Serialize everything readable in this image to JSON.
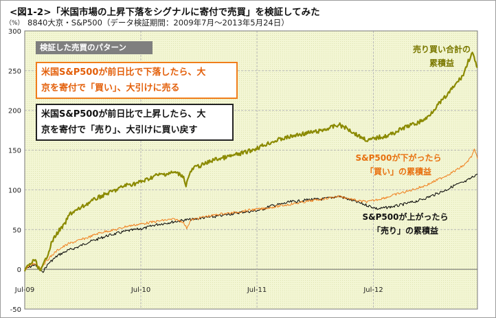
{
  "title": "<図1-2>「米国市場の上昇下落をシグナルに寄付で売買」を検証してみた",
  "subtitle": "8840大京・S&P500（データ検証期間：2009年7月～2013年5月24日）",
  "pattern_label": "検証した売買のパターン",
  "buy_rule_lines": [
    "米国S&P500が前日比で下落したら、大",
    "京を寄付で「買い」、大引けに売る"
  ],
  "sell_rule_lines": [
    "米国S&P500が前日比で上昇したら、大",
    "京を寄付で「売り」、大引けに買い戻す"
  ],
  "annotations": {
    "total": [
      "売り買い合計の",
      "累積益"
    ],
    "buy": [
      "S&P500が下がったら",
      "「買い」の累積益"
    ],
    "sell": [
      "S&P500が上がったら",
      "「売り」の累積益"
    ]
  },
  "colors": {
    "total": "#8b8a00",
    "buy": "#f07d1a",
    "sell": "#000000",
    "plot_bg": "#f3f6d4",
    "grid": "#b8b8b8"
  },
  "chart_data": {
    "type": "line",
    "ylabel": "（%）",
    "ylim": [
      -50,
      300
    ],
    "yticks": [
      -50,
      0,
      50,
      100,
      150,
      200,
      250,
      300
    ],
    "xlim": [
      "2009-07-01",
      "2013-05-24"
    ],
    "xticks": [
      {
        "label": "Jul-09",
        "date": "2009-07-01"
      },
      {
        "label": "Jul-10",
        "date": "2010-07-01"
      },
      {
        "label": "Jul-11",
        "date": "2011-07-01"
      },
      {
        "label": "Jul-12",
        "date": "2012-07-01"
      }
    ],
    "grid": true,
    "series": [
      {
        "key": "total",
        "points": [
          [
            "2009-07-01",
            0
          ],
          [
            "2009-08-01",
            12
          ],
          [
            "2009-08-20",
            -3
          ],
          [
            "2009-09-10",
            18
          ],
          [
            "2009-09-25",
            35
          ],
          [
            "2009-10-15",
            48
          ],
          [
            "2009-11-01",
            55
          ],
          [
            "2009-11-20",
            70
          ],
          [
            "2009-12-15",
            75
          ],
          [
            "2010-01-15",
            83
          ],
          [
            "2010-02-15",
            90
          ],
          [
            "2010-03-15",
            95
          ],
          [
            "2010-04-15",
            100
          ],
          [
            "2010-05-15",
            106
          ],
          [
            "2010-06-15",
            108
          ],
          [
            "2010-07-15",
            112
          ],
          [
            "2010-08-15",
            118
          ],
          [
            "2010-09-15",
            120
          ],
          [
            "2010-10-15",
            122
          ],
          [
            "2010-11-10",
            118
          ],
          [
            "2010-11-20",
            106
          ],
          [
            "2010-12-01",
            120
          ],
          [
            "2010-12-15",
            128
          ],
          [
            "2011-01-15",
            132
          ],
          [
            "2011-02-15",
            138
          ],
          [
            "2011-03-15",
            140
          ],
          [
            "2011-04-15",
            143
          ],
          [
            "2011-05-15",
            146
          ],
          [
            "2011-06-15",
            150
          ],
          [
            "2011-07-15",
            155
          ],
          [
            "2011-08-15",
            160
          ],
          [
            "2011-09-15",
            164
          ],
          [
            "2011-10-15",
            167
          ],
          [
            "2011-11-15",
            170
          ],
          [
            "2011-12-15",
            172
          ],
          [
            "2012-01-15",
            174
          ],
          [
            "2012-02-15",
            178
          ],
          [
            "2012-03-15",
            182
          ],
          [
            "2012-04-15",
            176
          ],
          [
            "2012-05-15",
            168
          ],
          [
            "2012-06-15",
            162
          ],
          [
            "2012-07-15",
            166
          ],
          [
            "2012-08-15",
            168
          ],
          [
            "2012-09-15",
            174
          ],
          [
            "2012-10-15",
            180
          ],
          [
            "2012-11-15",
            184
          ],
          [
            "2012-12-15",
            190
          ],
          [
            "2013-01-15",
            205
          ],
          [
            "2013-02-15",
            218
          ],
          [
            "2013-03-15",
            232
          ],
          [
            "2013-04-10",
            245
          ],
          [
            "2013-04-25",
            262
          ],
          [
            "2013-05-08",
            272
          ],
          [
            "2013-05-16",
            262
          ],
          [
            "2013-05-24",
            254
          ]
        ]
      },
      {
        "key": "buy",
        "points": [
          [
            "2009-07-01",
            0
          ],
          [
            "2009-08-01",
            8
          ],
          [
            "2009-08-20",
            2
          ],
          [
            "2009-09-15",
            14
          ],
          [
            "2009-10-15",
            25
          ],
          [
            "2009-11-15",
            32
          ],
          [
            "2009-12-15",
            36
          ],
          [
            "2010-01-15",
            40
          ],
          [
            "2010-02-15",
            45
          ],
          [
            "2010-03-15",
            48
          ],
          [
            "2010-04-15",
            50
          ],
          [
            "2010-05-15",
            54
          ],
          [
            "2010-06-15",
            56
          ],
          [
            "2010-07-15",
            58
          ],
          [
            "2010-08-15",
            60
          ],
          [
            "2010-09-15",
            62
          ],
          [
            "2010-10-15",
            63
          ],
          [
            "2010-11-10",
            60
          ],
          [
            "2010-11-22",
            52
          ],
          [
            "2010-12-05",
            62
          ],
          [
            "2011-01-15",
            66
          ],
          [
            "2011-02-15",
            68
          ],
          [
            "2011-03-15",
            70
          ],
          [
            "2011-04-15",
            71
          ],
          [
            "2011-05-15",
            73
          ],
          [
            "2011-06-15",
            75
          ],
          [
            "2011-07-15",
            76
          ],
          [
            "2011-08-15",
            78
          ],
          [
            "2011-09-15",
            80
          ],
          [
            "2011-10-15",
            82
          ],
          [
            "2011-11-15",
            84
          ],
          [
            "2011-12-15",
            86
          ],
          [
            "2012-01-15",
            88
          ],
          [
            "2012-02-15",
            90
          ],
          [
            "2012-03-15",
            92
          ],
          [
            "2012-04-15",
            89
          ],
          [
            "2012-05-15",
            86
          ],
          [
            "2012-06-15",
            85
          ],
          [
            "2012-07-15",
            88
          ],
          [
            "2012-08-15",
            91
          ],
          [
            "2012-09-15",
            95
          ],
          [
            "2012-10-15",
            98
          ],
          [
            "2012-11-15",
            102
          ],
          [
            "2012-12-15",
            106
          ],
          [
            "2013-01-15",
            112
          ],
          [
            "2013-02-15",
            118
          ],
          [
            "2013-03-15",
            124
          ],
          [
            "2013-04-15",
            132
          ],
          [
            "2013-05-05",
            142
          ],
          [
            "2013-05-14",
            150
          ],
          [
            "2013-05-20",
            144
          ],
          [
            "2013-05-24",
            139
          ]
        ]
      },
      {
        "key": "sell",
        "points": [
          [
            "2009-07-01",
            0
          ],
          [
            "2009-08-01",
            6
          ],
          [
            "2009-08-25",
            -4
          ],
          [
            "2009-09-15",
            8
          ],
          [
            "2009-10-15",
            18
          ],
          [
            "2009-11-15",
            24
          ],
          [
            "2009-12-15",
            28
          ],
          [
            "2010-01-15",
            34
          ],
          [
            "2010-02-15",
            38
          ],
          [
            "2010-03-15",
            42
          ],
          [
            "2010-04-15",
            45
          ],
          [
            "2010-05-15",
            48
          ],
          [
            "2010-06-15",
            50
          ],
          [
            "2010-07-15",
            52
          ],
          [
            "2010-08-15",
            56
          ],
          [
            "2010-09-15",
            58
          ],
          [
            "2010-10-15",
            60
          ],
          [
            "2010-11-15",
            62
          ],
          [
            "2010-12-15",
            63
          ],
          [
            "2011-01-15",
            65
          ],
          [
            "2011-02-15",
            66
          ],
          [
            "2011-03-15",
            68
          ],
          [
            "2011-04-15",
            70
          ],
          [
            "2011-05-15",
            72
          ],
          [
            "2011-06-15",
            73
          ],
          [
            "2011-07-15",
            75
          ],
          [
            "2011-08-15",
            80
          ],
          [
            "2011-09-15",
            82
          ],
          [
            "2011-10-15",
            85
          ],
          [
            "2011-11-15",
            86
          ],
          [
            "2011-12-15",
            88
          ],
          [
            "2012-01-15",
            88
          ],
          [
            "2012-02-15",
            90
          ],
          [
            "2012-03-15",
            92
          ],
          [
            "2012-04-15",
            88
          ],
          [
            "2012-05-15",
            84
          ],
          [
            "2012-06-15",
            80
          ],
          [
            "2012-07-15",
            76
          ],
          [
            "2012-08-15",
            78
          ],
          [
            "2012-09-15",
            80
          ],
          [
            "2012-10-15",
            83
          ],
          [
            "2012-11-15",
            86
          ],
          [
            "2012-12-15",
            90
          ],
          [
            "2013-01-15",
            95
          ],
          [
            "2013-02-15",
            100
          ],
          [
            "2013-03-15",
            106
          ],
          [
            "2013-04-15",
            110
          ],
          [
            "2013-05-05",
            115
          ],
          [
            "2013-05-15",
            118
          ],
          [
            "2013-05-24",
            120
          ]
        ]
      }
    ]
  }
}
